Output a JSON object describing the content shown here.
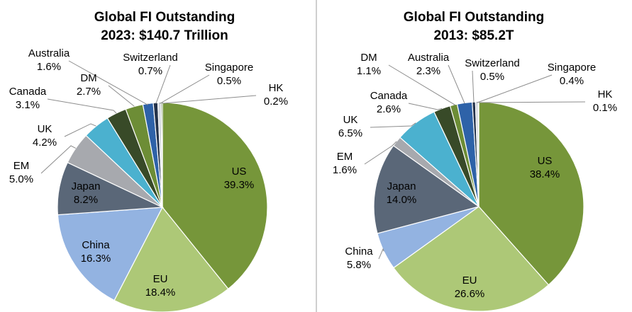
{
  "chart_data": [
    {
      "type": "pie",
      "title": "Global FI Outstanding",
      "subtitle": "2023: $140.7 Trillion",
      "slices": [
        {
          "label": "US",
          "value": 39.3,
          "display": "39.3%",
          "color": "#76963a"
        },
        {
          "label": "EU",
          "value": 18.4,
          "display": "18.4%",
          "color": "#adc877"
        },
        {
          "label": "China",
          "value": 16.3,
          "display": "16.3%",
          "color": "#93b3e1"
        },
        {
          "label": "Japan",
          "value": 8.2,
          "display": "8.2%",
          "color": "#5a6778"
        },
        {
          "label": "EM",
          "value": 5.0,
          "display": "5.0%",
          "color": "#a7a9ae"
        },
        {
          "label": "UK",
          "value": 4.2,
          "display": "4.2%",
          "color": "#4bb1cf"
        },
        {
          "label": "Canada",
          "value": 3.1,
          "display": "3.1%",
          "color": "#384a28"
        },
        {
          "label": "DM",
          "value": 2.7,
          "display": "2.7%",
          "color": "#6d8d36"
        },
        {
          "label": "Australia",
          "value": 1.6,
          "display": "1.6%",
          "color": "#2e62a8"
        },
        {
          "label": "Switzerland",
          "value": 0.7,
          "display": "0.7%",
          "color": "#23324a"
        },
        {
          "label": "Singapore",
          "value": 0.5,
          "display": "0.5%",
          "color": "#cfd4db"
        },
        {
          "label": "HK",
          "value": 0.2,
          "display": "0.2%",
          "color": "#4a6a2a"
        }
      ]
    },
    {
      "type": "pie",
      "title": "Global FI Outstanding",
      "subtitle": "2013: $85.2T",
      "slices": [
        {
          "label": "US",
          "value": 38.4,
          "display": "38.4%",
          "color": "#76963a"
        },
        {
          "label": "EU",
          "value": 26.6,
          "display": "26.6%",
          "color": "#adc877"
        },
        {
          "label": "China",
          "value": 5.8,
          "display": "5.8%",
          "color": "#93b3e1"
        },
        {
          "label": "Japan",
          "value": 14.0,
          "display": "14.0%",
          "color": "#5a6778"
        },
        {
          "label": "EM",
          "value": 1.6,
          "display": "1.6%",
          "color": "#a7a9ae"
        },
        {
          "label": "UK",
          "value": 6.5,
          "display": "6.5%",
          "color": "#4bb1cf"
        },
        {
          "label": "Canada",
          "value": 2.6,
          "display": "2.6%",
          "color": "#384a28"
        },
        {
          "label": "DM",
          "value": 1.1,
          "display": "1.1%",
          "color": "#6d8d36"
        },
        {
          "label": "Australia",
          "value": 2.3,
          "display": "2.3%",
          "color": "#2e62a8"
        },
        {
          "label": "Switzerland",
          "value": 0.5,
          "display": "0.5%",
          "color": "#23324a"
        },
        {
          "label": "Singapore",
          "value": 0.4,
          "display": "0.4%",
          "color": "#cfd4db"
        },
        {
          "label": "HK",
          "value": 0.1,
          "display": "0.1%",
          "color": "#4a6a2a"
        }
      ]
    }
  ]
}
